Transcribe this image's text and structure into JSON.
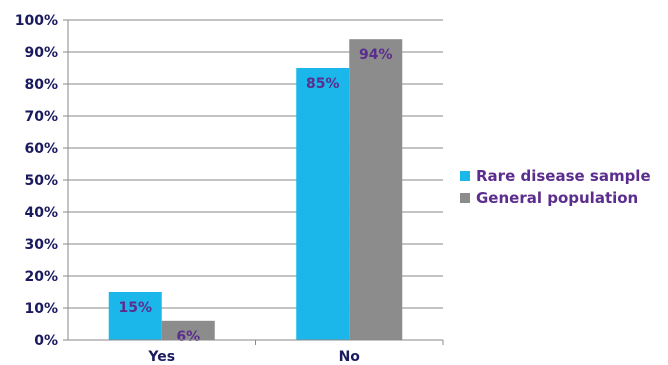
{
  "chart_data": {
    "type": "bar",
    "categories": [
      "Yes",
      "No"
    ],
    "series": [
      {
        "name": "Rare disease sample",
        "values": [
          15,
          85
        ],
        "color": "#1bb7ea"
      },
      {
        "name": "General population",
        "values": [
          6,
          94
        ],
        "color": "#8c8c8c"
      }
    ],
    "data_labels": [
      [
        "15%",
        "85%"
      ],
      [
        "6%",
        "94%"
      ]
    ],
    "yticks": [
      "0%",
      "10%",
      "20%",
      "30%",
      "40%",
      "50%",
      "60%",
      "70%",
      "80%",
      "90%",
      "100%"
    ],
    "ylim": [
      0,
      100
    ],
    "grid": true,
    "legend_position": "right",
    "label_color": "#5b2d8e",
    "axis_color": "#1a1a5e"
  }
}
